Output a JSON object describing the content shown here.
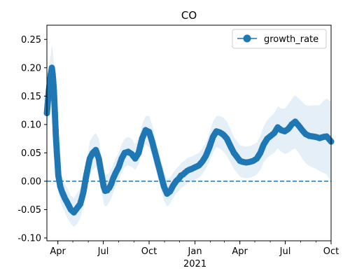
{
  "chart_data": {
    "type": "line",
    "title": "CO",
    "xlabel": "",
    "ylabel": "",
    "x_range": [
      "2020-03-10",
      "2021-10-01"
    ],
    "ylim": [
      -0.105,
      0.275
    ],
    "grid": false,
    "legend": {
      "placement": "top-right",
      "entries": [
        "growth_rate"
      ]
    },
    "x_ticks": [
      {
        "date": "2020-04-01",
        "label": "Apr"
      },
      {
        "date": "2020-07-01",
        "label": "Jul"
      },
      {
        "date": "2020-10-01",
        "label": "Oct"
      },
      {
        "date": "2021-01-01",
        "label": "Jan",
        "sublabel": "2021"
      },
      {
        "date": "2021-04-01",
        "label": "Apr"
      },
      {
        "date": "2021-07-01",
        "label": "Jul"
      },
      {
        "date": "2021-10-01",
        "label": "Oct"
      }
    ],
    "y_ticks": [
      -0.1,
      -0.05,
      0.0,
      0.05,
      0.1,
      0.15,
      0.2,
      0.25
    ],
    "reference_line": {
      "y": 0.0,
      "style": "dashed"
    },
    "colors": {
      "series": "#1f77b4",
      "band": "#c6dbef"
    },
    "series": [
      {
        "name": "growth_rate",
        "marker": "circle",
        "x": [
          "2020-03-10",
          "2020-03-14",
          "2020-03-18",
          "2020-03-20",
          "2020-03-22",
          "2020-03-24",
          "2020-03-26",
          "2020-03-28",
          "2020-03-30",
          "2020-04-02",
          "2020-04-06",
          "2020-04-10",
          "2020-04-15",
          "2020-04-20",
          "2020-04-27",
          "2020-05-03",
          "2020-05-10",
          "2020-05-16",
          "2020-05-22",
          "2020-05-28",
          "2020-06-04",
          "2020-06-10",
          "2020-06-16",
          "2020-06-22",
          "2020-06-28",
          "2020-07-02",
          "2020-07-05",
          "2020-07-09",
          "2020-07-13",
          "2020-07-17",
          "2020-07-21",
          "2020-07-26",
          "2020-08-01",
          "2020-08-07",
          "2020-08-13",
          "2020-08-20",
          "2020-08-27",
          "2020-09-03",
          "2020-09-10",
          "2020-09-17",
          "2020-09-24",
          "2020-10-01",
          "2020-10-07",
          "2020-10-13",
          "2020-10-19",
          "2020-10-25",
          "2020-10-31",
          "2020-11-06",
          "2020-11-12",
          "2020-11-18",
          "2020-11-24",
          "2020-11-30",
          "2020-12-04",
          "2020-12-08",
          "2020-12-12",
          "2020-12-16",
          "2020-12-20",
          "2020-12-26",
          "2021-01-02",
          "2021-01-09",
          "2021-01-16",
          "2021-01-23",
          "2021-01-30",
          "2021-02-06",
          "2021-02-13",
          "2021-02-20",
          "2021-02-27",
          "2021-03-06",
          "2021-03-13",
          "2021-03-20",
          "2021-03-27",
          "2021-04-01",
          "2021-04-07",
          "2021-04-14",
          "2021-04-21",
          "2021-04-28",
          "2021-05-05",
          "2021-05-12",
          "2021-05-19",
          "2021-05-26",
          "2021-06-02",
          "2021-06-09",
          "2021-06-16",
          "2021-06-23",
          "2021-06-30",
          "2021-07-07",
          "2021-07-14",
          "2021-07-21",
          "2021-07-28",
          "2021-08-04",
          "2021-08-11",
          "2021-08-18",
          "2021-08-25",
          "2021-09-01",
          "2021-09-08",
          "2021-09-15",
          "2021-09-22",
          "2021-10-01"
        ],
        "y": [
          0.12,
          0.16,
          0.19,
          0.2,
          0.185,
          0.16,
          0.12,
          0.08,
          0.05,
          0.01,
          -0.01,
          -0.02,
          -0.03,
          -0.038,
          -0.05,
          -0.055,
          -0.047,
          -0.04,
          -0.02,
          0.01,
          0.04,
          0.05,
          0.055,
          0.04,
          0.01,
          -0.01,
          -0.017,
          -0.016,
          -0.012,
          -0.005,
          0.005,
          0.015,
          0.025,
          0.04,
          0.05,
          0.052,
          0.048,
          0.04,
          0.05,
          0.075,
          0.09,
          0.087,
          0.07,
          0.05,
          0.03,
          0.01,
          -0.01,
          -0.022,
          -0.018,
          -0.008,
          0.0,
          0.005,
          0.01,
          0.012,
          0.015,
          0.018,
          0.02,
          0.022,
          0.025,
          0.028,
          0.035,
          0.045,
          0.06,
          0.078,
          0.088,
          0.086,
          0.082,
          0.075,
          0.062,
          0.05,
          0.042,
          0.036,
          0.034,
          0.033,
          0.034,
          0.036,
          0.04,
          0.05,
          0.065,
          0.075,
          0.08,
          0.085,
          0.095,
          0.09,
          0.088,
          0.092,
          0.1,
          0.105,
          0.098,
          0.09,
          0.083,
          0.08,
          0.079,
          0.078,
          0.076,
          0.078,
          0.079,
          0.07
        ],
        "lower": [
          0.09,
          0.12,
          0.15,
          0.155,
          0.14,
          0.115,
          0.08,
          0.045,
          0.02,
          -0.02,
          -0.035,
          -0.045,
          -0.055,
          -0.065,
          -0.075,
          -0.08,
          -0.075,
          -0.065,
          -0.045,
          -0.015,
          0.01,
          0.02,
          0.025,
          0.005,
          -0.02,
          -0.04,
          -0.045,
          -0.042,
          -0.037,
          -0.03,
          -0.02,
          -0.01,
          0.0,
          0.015,
          0.025,
          0.028,
          0.025,
          0.02,
          0.03,
          0.055,
          0.065,
          0.06,
          0.045,
          0.025,
          0.005,
          -0.015,
          -0.035,
          -0.045,
          -0.04,
          -0.03,
          -0.022,
          -0.017,
          -0.012,
          -0.01,
          -0.007,
          -0.004,
          -0.002,
          0.0,
          0.003,
          0.006,
          0.013,
          0.022,
          0.035,
          0.05,
          0.06,
          0.058,
          0.052,
          0.045,
          0.033,
          0.022,
          0.014,
          0.008,
          0.006,
          0.005,
          0.006,
          0.008,
          0.012,
          0.02,
          0.033,
          0.042,
          0.046,
          0.05,
          0.058,
          0.052,
          0.048,
          0.05,
          0.055,
          0.058,
          0.05,
          0.04,
          0.032,
          0.027,
          0.024,
          0.022,
          0.018,
          0.015,
          0.012,
          0.0
        ],
        "upper": [
          0.15,
          0.2,
          0.225,
          0.24,
          0.23,
          0.205,
          0.165,
          0.115,
          0.08,
          0.04,
          0.015,
          0.005,
          -0.005,
          -0.012,
          -0.025,
          -0.03,
          -0.02,
          -0.013,
          0.006,
          0.035,
          0.07,
          0.08,
          0.085,
          0.075,
          0.04,
          0.02,
          0.012,
          0.012,
          0.015,
          0.022,
          0.03,
          0.04,
          0.05,
          0.065,
          0.075,
          0.078,
          0.075,
          0.065,
          0.075,
          0.1,
          0.115,
          0.115,
          0.1,
          0.077,
          0.057,
          0.037,
          0.017,
          0.004,
          0.006,
          0.015,
          0.022,
          0.027,
          0.032,
          0.034,
          0.037,
          0.04,
          0.042,
          0.044,
          0.047,
          0.05,
          0.058,
          0.068,
          0.085,
          0.105,
          0.115,
          0.115,
          0.112,
          0.105,
          0.092,
          0.078,
          0.07,
          0.064,
          0.062,
          0.061,
          0.062,
          0.065,
          0.068,
          0.08,
          0.097,
          0.108,
          0.114,
          0.12,
          0.132,
          0.128,
          0.128,
          0.135,
          0.145,
          0.152,
          0.146,
          0.14,
          0.134,
          0.133,
          0.134,
          0.134,
          0.134,
          0.141,
          0.146,
          0.14
        ]
      }
    ]
  }
}
